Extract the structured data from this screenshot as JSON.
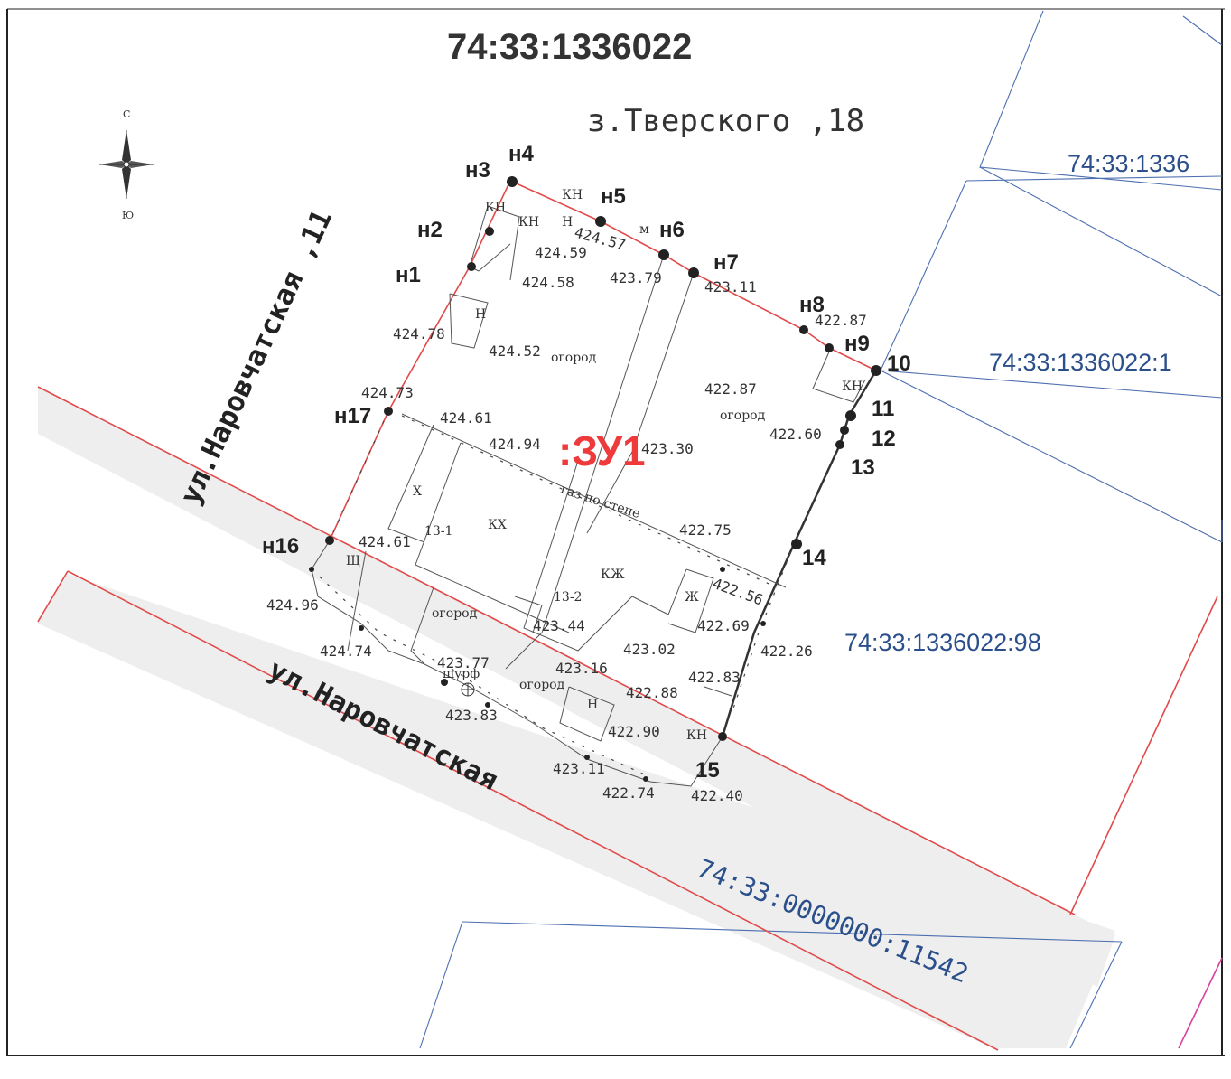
{
  "map_title": "74:33:1336022",
  "compass": {
    "north": "С",
    "south": "Ю"
  },
  "address": "з.Тверского ,18",
  "streets": {
    "upper": "ул.Наровчатская ,11",
    "lower": "ул.Наровчатская"
  },
  "parcels": {
    "top_right": "74:33:1336",
    "middle_right": "74:33:1336022:1",
    "lower_right": "74:33:1336022:98",
    "bottom": "74:33:0000000:11542"
  },
  "zu_label": ":ЗУ1",
  "boundary_points": [
    {
      "label": "н1"
    },
    {
      "label": "н2"
    },
    {
      "label": "н3"
    },
    {
      "label": "н4"
    },
    {
      "label": "н5"
    },
    {
      "label": "н6"
    },
    {
      "label": "н7"
    },
    {
      "label": "н8"
    },
    {
      "label": "н9"
    },
    {
      "label": "10"
    },
    {
      "label": "11"
    },
    {
      "label": "12"
    },
    {
      "label": "13"
    },
    {
      "label": "14"
    },
    {
      "label": "15"
    },
    {
      "label": "н16"
    },
    {
      "label": "н17"
    }
  ],
  "elevations": [
    "424.59",
    "424.58",
    "423.79",
    "423.11",
    "422.87",
    "424.78",
    "424.52",
    "422.87",
    "424.73",
    "424.61",
    "424.94",
    "423.30",
    "422.60",
    "424.61",
    "422.75",
    "424.96",
    "422.56",
    "422.69",
    "424.74",
    "423.44",
    "423.02",
    "422.26",
    "423.77",
    "423.16",
    "422.83",
    "422.88",
    "423.83",
    "422.90",
    "423.11",
    "422.74",
    "422.40",
    "424.57"
  ],
  "annotations": {
    "kn": "КН",
    "kn2": "КН",
    "kn3": "КН",
    "kn4": "КН",
    "kn5": "КН",
    "n": "Н",
    "n2": "Н",
    "n3": "Н",
    "m": "м",
    "h": "Х",
    "kh1": "КХ",
    "kh2": "КЖ",
    "zh": "Ж",
    "sch": "Щ",
    "ogorod1": "огород",
    "ogorod2": "огород",
    "ogorod3": "огород",
    "ogorod4": "огород",
    "bldg1": "13-1",
    "bldg2": "13-2",
    "gas": "газ по стене",
    "shurf": "шурф"
  },
  "colors": {
    "boundary_red": "#e24a4a",
    "parcel_blue": "#4d6fb0",
    "zu_red": "#ee3a3a",
    "road_fill": "#eeeeee"
  }
}
